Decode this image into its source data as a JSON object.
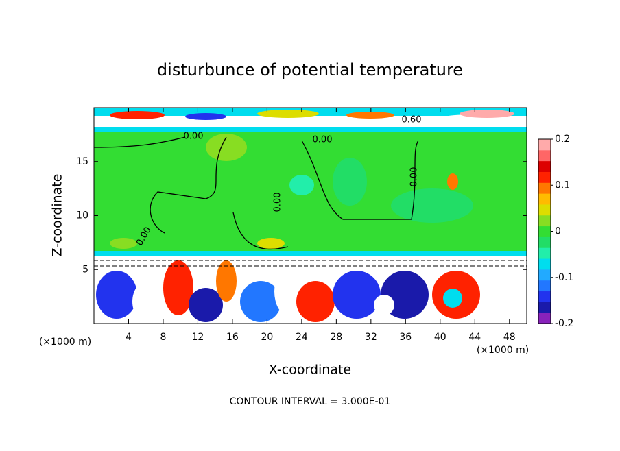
{
  "chart_data": {
    "type": "contour",
    "title": "disturbunce of potential temperature",
    "x_label": "X-coordinate",
    "y_label": "Z-coordinate",
    "x_unit_labels": [
      "(×1000 m)",
      "(×1000 m)"
    ],
    "contour_labels": [
      "0.00",
      "0.00",
      "0.60",
      "0.00",
      "0.00",
      "0.00"
    ],
    "footer": "CONTOUR INTERVAL = 3.000E-01",
    "xlim": [
      0,
      50
    ],
    "xticks": [
      4,
      8,
      12,
      16,
      20,
      24,
      28,
      32,
      36,
      40,
      44,
      48
    ],
    "ylim": [
      0,
      20
    ],
    "yticks": [
      5,
      10,
      15
    ],
    "colorbar": {
      "lim": [
        -0.2,
        0.2
      ],
      "ticks": [
        -0.2,
        -0.1,
        0,
        0.1,
        0.2
      ],
      "colors": [
        "#8822bb",
        "#1a1aaa",
        "#2233ee",
        "#2277ff",
        "#22aaff",
        "#00ddee",
        "#22eeaa",
        "#22dd66",
        "#33dd33",
        "#88dd22",
        "#dddd00",
        "#ffbb00",
        "#ff7700",
        "#ff2200",
        "#dd0000",
        "#ff6666",
        "#ffaaaa"
      ]
    }
  }
}
